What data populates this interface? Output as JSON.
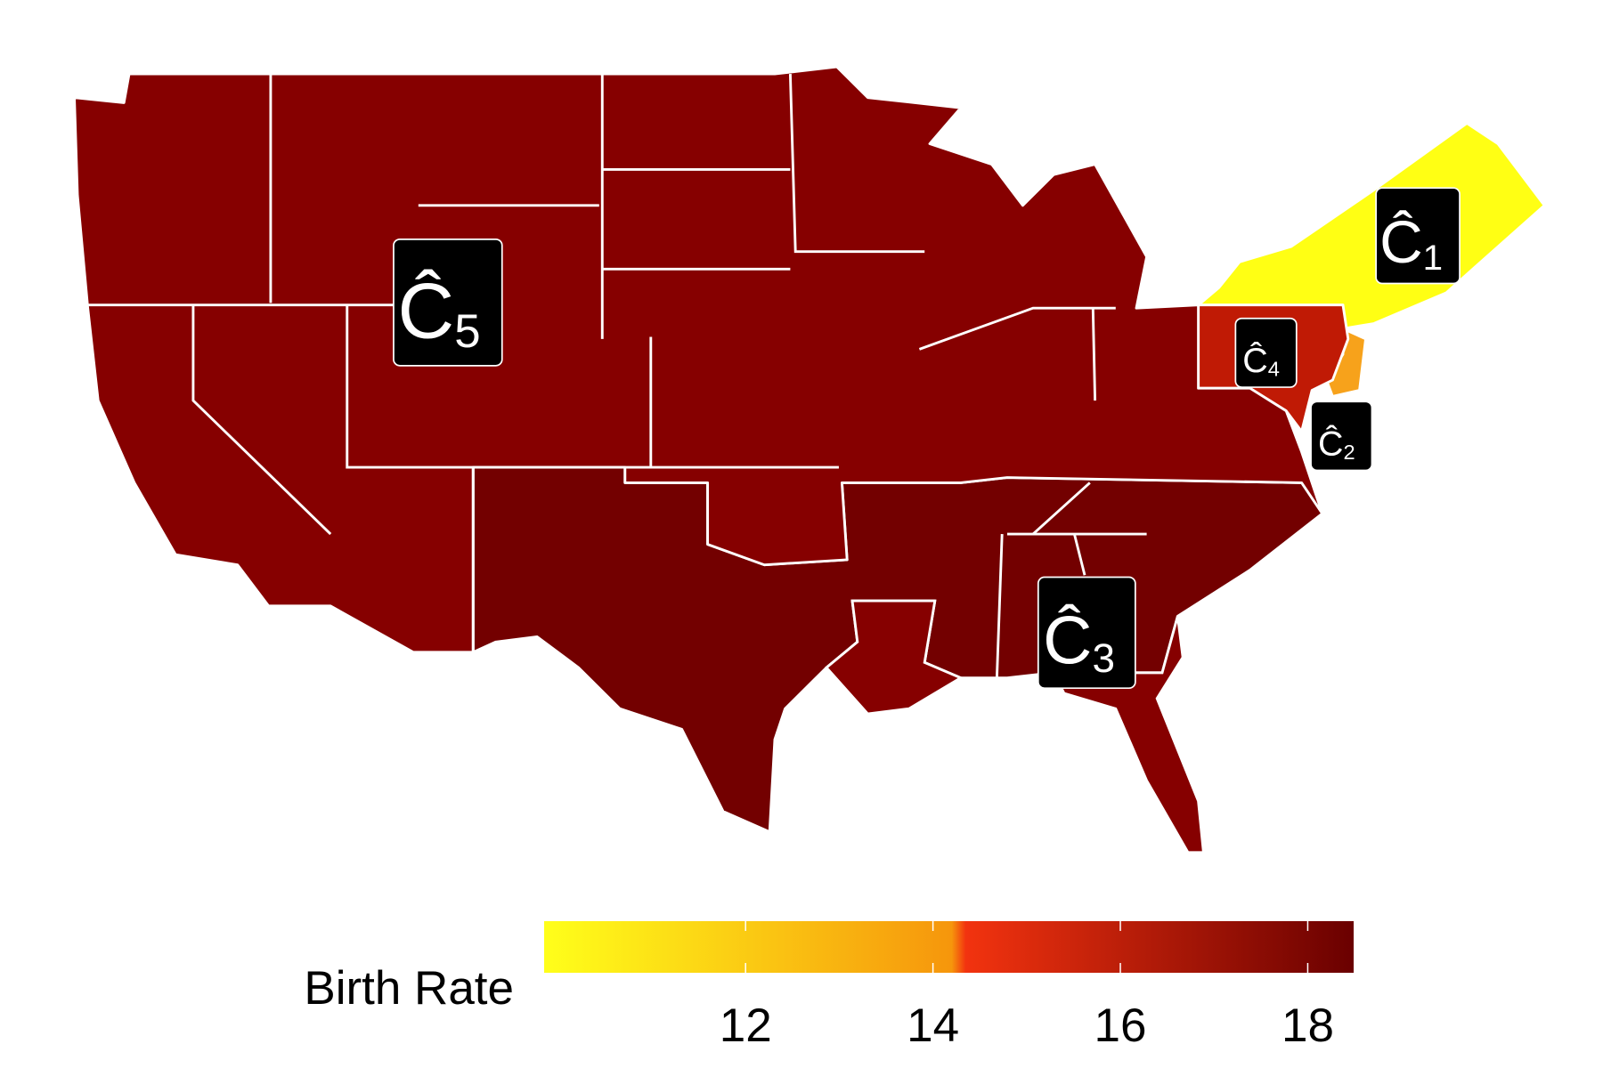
{
  "chart_data": {
    "type": "choropleth",
    "legend_title": "Birth Rate",
    "clusters": [
      {
        "label": "Ĉ",
        "subscript": "1",
        "value": 10.2,
        "color": "#ffff14"
      },
      {
        "label": "Ĉ",
        "subscript": "2",
        "value": 13.6,
        "color": "#f7a21b"
      },
      {
        "label": "Ĉ",
        "subscript": "3",
        "value": 18.3,
        "color": "#730000"
      },
      {
        "label": "Ĉ",
        "subscript": "4",
        "value": 16.6,
        "color": "#c01a05"
      },
      {
        "label": "Ĉ",
        "subscript": "5",
        "value": 17.6,
        "color": "#860000"
      }
    ],
    "colorbar_lim": [
      9.85,
      18.49
    ],
    "colorbar_ticks": [
      12,
      14,
      16,
      18
    ],
    "colorbar_stops": [
      {
        "value": 9.85,
        "color": "#ffff1a"
      },
      {
        "value": 14.2,
        "color": "#f6960c"
      },
      {
        "value": 14.35,
        "color": "#f2330f"
      },
      {
        "value": 18.49,
        "color": "#6a0000"
      }
    ]
  }
}
